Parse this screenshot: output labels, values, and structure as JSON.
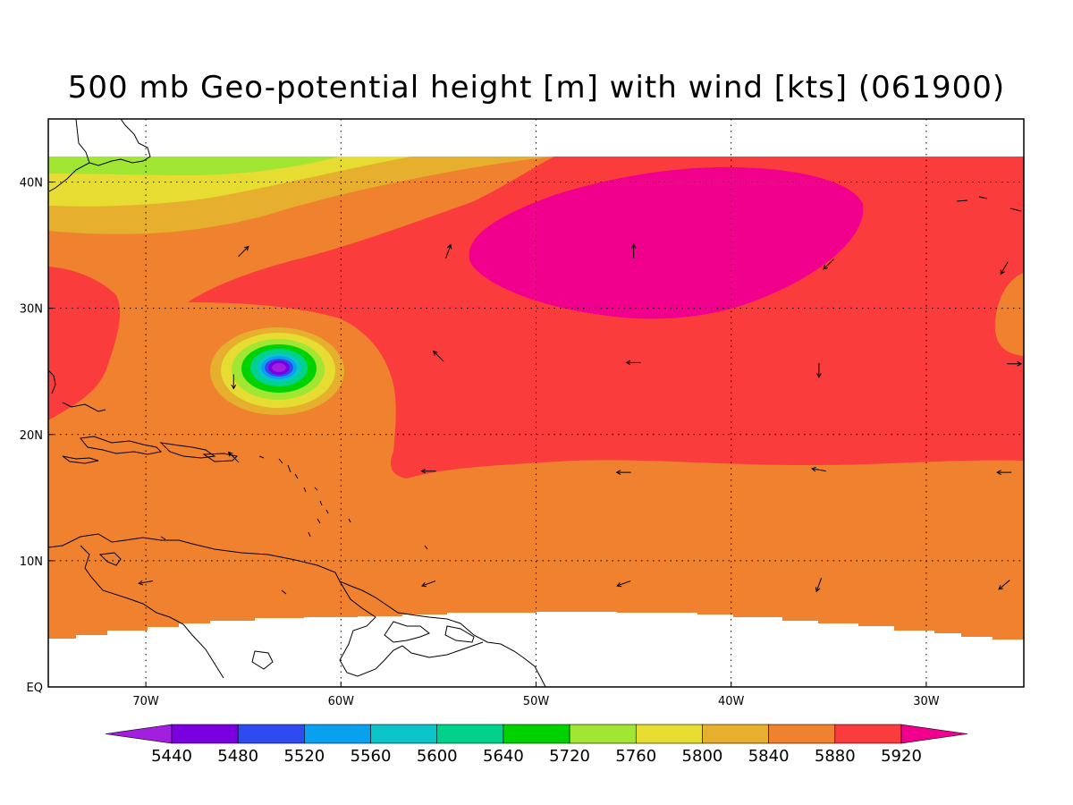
{
  "title": "500 mb Geo-potential height [m] with wind [kts] (061900)",
  "map": {
    "lon_range": [
      -75,
      -25
    ],
    "lat_range": [
      0,
      45
    ],
    "data_lat_range": [
      3.8,
      42
    ],
    "x_ticks": [
      {
        "lon": -70,
        "label": "70W"
      },
      {
        "lon": -60,
        "label": "60W"
      },
      {
        "lon": -50,
        "label": "50W"
      },
      {
        "lon": -40,
        "label": "40W"
      },
      {
        "lon": -30,
        "label": "30W"
      }
    ],
    "y_ticks": [
      {
        "lat": 0,
        "label": "EQ"
      },
      {
        "lat": 10,
        "label": "10N"
      },
      {
        "lat": 20,
        "label": "20N"
      },
      {
        "lat": 30,
        "label": "30N"
      },
      {
        "lat": 40,
        "label": "40N"
      }
    ],
    "grid": true,
    "background_level_color": "#f0822f"
  },
  "colorbar": {
    "levels": [
      "5440",
      "5480",
      "5520",
      "5560",
      "5600",
      "5640",
      "5720",
      "5760",
      "5800",
      "5840",
      "5880",
      "5920"
    ],
    "colors": [
      "#a31fe0",
      "#7b00e0",
      "#2f4bf0",
      "#0aa0f0",
      "#0ac4c8",
      "#00d28c",
      "#00d200",
      "#a0e632",
      "#e6dc32",
      "#e6af2d",
      "#f0822f",
      "#fa3c3c",
      "#f0008c"
    ]
  },
  "wind_arrows": [
    {
      "lon": -65,
      "lat": 34.5,
      "dir": 45
    },
    {
      "lon": -54.5,
      "lat": 34.5,
      "dir": 20
    },
    {
      "lon": -45,
      "lat": 34.5,
      "dir": 0
    },
    {
      "lon": -35,
      "lat": 33.5,
      "dir": 225
    },
    {
      "lon": -26,
      "lat": 33.2,
      "dir": 210
    },
    {
      "lon": -65.5,
      "lat": 24.2,
      "dir": 180
    },
    {
      "lon": -55,
      "lat": 26.2,
      "dir": 315
    },
    {
      "lon": -45,
      "lat": 25.7,
      "dir": 270
    },
    {
      "lon": -35.5,
      "lat": 25.1,
      "dir": 180
    },
    {
      "lon": -25.5,
      "lat": 25.6,
      "dir": 90
    },
    {
      "lon": -65.5,
      "lat": 18.2,
      "dir": 315
    },
    {
      "lon": -55.5,
      "lat": 17.1,
      "dir": 270
    },
    {
      "lon": -45.5,
      "lat": 17,
      "dir": 270
    },
    {
      "lon": -35.5,
      "lat": 17.2,
      "dir": 280
    },
    {
      "lon": -26,
      "lat": 17,
      "dir": 270
    },
    {
      "lon": -70,
      "lat": 8.3,
      "dir": 260
    },
    {
      "lon": -55.5,
      "lat": 8.2,
      "dir": 250
    },
    {
      "lon": -45.5,
      "lat": 8.2,
      "dir": 250
    },
    {
      "lon": -35.5,
      "lat": 8.1,
      "dir": 200
    },
    {
      "lon": -26,
      "lat": 8.1,
      "dir": 230
    }
  ]
}
